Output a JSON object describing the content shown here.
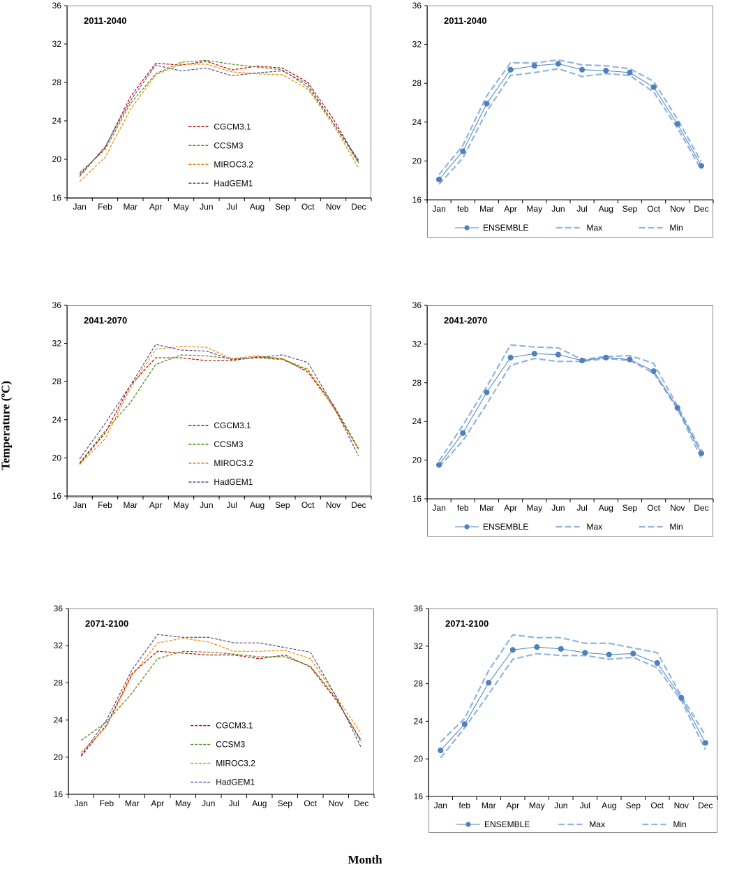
{
  "figure": {
    "ylabel_prefix": "Temperature (",
    "ylabel_sup": "o",
    "ylabel_suffix": "C)",
    "xlabel": "Month"
  },
  "colors": {
    "CGCM3.1": "#c00000",
    "CCSM3": "#4f8a10",
    "MIROC3.2": "#f08a00",
    "HadGEM1": "#5a4a8c",
    "ensemble": "#4f81bd",
    "bounds": "#8fb4e3",
    "frame": "#888888",
    "grid": "#000000"
  },
  "chart_data": [
    {
      "type": "line",
      "title": "2011-2040",
      "categories": [
        "Jan",
        "Feb",
        "Mar",
        "Apr",
        "May",
        "Jun",
        "Jul",
        "Aug",
        "Sep",
        "Oct",
        "Nov",
        "Dec"
      ],
      "yticks": [
        "16",
        "20",
        "24",
        "28",
        "32",
        "36"
      ],
      "ylim": [
        16,
        36
      ],
      "legend": "center",
      "series": [
        {
          "name": "CGCM3.1",
          "values": [
            18.4,
            21.2,
            26.5,
            30.0,
            29.8,
            30.2,
            29.3,
            29.7,
            29.5,
            28.0,
            24.2,
            19.7
          ]
        },
        {
          "name": "CCSM3",
          "values": [
            18.6,
            21.0,
            25.8,
            28.9,
            30.1,
            30.3,
            29.9,
            29.6,
            29.3,
            27.5,
            23.8,
            19.6
          ]
        },
        {
          "name": "MIROC3.2",
          "values": [
            17.7,
            20.2,
            25.2,
            28.8,
            29.9,
            29.9,
            29.1,
            28.9,
            28.8,
            27.3,
            23.6,
            19.1
          ]
        },
        {
          "name": "HadGEM1",
          "values": [
            18.2,
            21.3,
            26.1,
            29.8,
            29.2,
            29.5,
            28.7,
            29.0,
            29.2,
            27.8,
            23.8,
            19.9
          ]
        }
      ]
    },
    {
      "type": "line",
      "title": "2011-2040",
      "categories": [
        "Jan",
        "feb",
        "Mar",
        "Apr",
        "May",
        "Jun",
        "Jul",
        "Aug",
        "Sep",
        "Oct",
        "Nov",
        "Dec"
      ],
      "yticks": [
        "16",
        "20",
        "24",
        "28",
        "32",
        "36"
      ],
      "ylim": [
        16,
        36
      ],
      "legend": "bottom",
      "series": [
        {
          "name": "ENSEMBLE",
          "values": [
            18.1,
            21.0,
            25.9,
            29.4,
            29.8,
            30.0,
            29.4,
            29.3,
            29.1,
            27.6,
            23.8,
            19.5
          ]
        },
        {
          "name": "Max",
          "values": [
            18.6,
            21.6,
            26.7,
            30.1,
            30.1,
            30.4,
            29.9,
            29.8,
            29.5,
            28.2,
            24.3,
            19.9
          ]
        },
        {
          "name": "Min",
          "values": [
            17.6,
            20.3,
            25.1,
            28.8,
            29.1,
            29.5,
            28.7,
            29.0,
            28.8,
            27.1,
            23.4,
            19.1
          ]
        }
      ]
    },
    {
      "type": "line",
      "title": "2041-2070",
      "categories": [
        "Jan",
        "Feb",
        "Mar",
        "Apr",
        "May",
        "Jun",
        "Jul",
        "Aug",
        "Sep",
        "Oct",
        "Nov",
        "Dec"
      ],
      "yticks": [
        "16",
        "20",
        "24",
        "28",
        "32",
        "36"
      ],
      "ylim": [
        16,
        36
      ],
      "legend": "center",
      "series": [
        {
          "name": "CGCM3.1",
          "values": [
            19.4,
            22.6,
            27.6,
            30.5,
            30.5,
            30.2,
            30.2,
            30.6,
            30.4,
            29.0,
            25.4,
            20.9
          ]
        },
        {
          "name": "CCSM3",
          "values": [
            19.5,
            22.8,
            25.8,
            29.8,
            30.8,
            30.7,
            30.4,
            30.5,
            30.3,
            29.2,
            25.6,
            21.0
          ]
        },
        {
          "name": "MIROC3.2",
          "values": [
            19.3,
            22.0,
            27.3,
            31.4,
            31.7,
            31.6,
            30.4,
            30.7,
            30.4,
            29.3,
            25.3,
            20.9
          ]
        },
        {
          "name": "HadGEM1",
          "values": [
            19.9,
            23.6,
            27.6,
            31.9,
            31.3,
            31.2,
            30.3,
            30.5,
            30.8,
            30.0,
            25.5,
            20.2
          ]
        }
      ]
    },
    {
      "type": "line",
      "title": "2041-2070",
      "categories": [
        "Jan",
        "feb",
        "Mar",
        "Apr",
        "May",
        "Jun",
        "Jul",
        "Aug",
        "Sep",
        "Oct",
        "Nov",
        "Dec"
      ],
      "yticks": [
        "16",
        "20",
        "24",
        "28",
        "32",
        "36"
      ],
      "ylim": [
        16,
        36
      ],
      "legend": "bottom",
      "series": [
        {
          "name": "ENSEMBLE",
          "values": [
            19.5,
            22.8,
            27.0,
            30.6,
            31.0,
            30.9,
            30.3,
            30.6,
            30.4,
            29.2,
            25.4,
            20.7
          ]
        },
        {
          "name": "Max",
          "values": [
            19.9,
            23.6,
            27.6,
            31.9,
            31.7,
            31.6,
            30.4,
            30.7,
            30.8,
            30.0,
            25.6,
            21.0
          ]
        },
        {
          "name": "Min",
          "values": [
            19.3,
            22.0,
            25.8,
            29.8,
            30.5,
            30.2,
            30.2,
            30.5,
            30.3,
            29.0,
            25.3,
            20.2
          ]
        }
      ]
    },
    {
      "type": "line",
      "title": "2071-2100",
      "categories": [
        "Jan",
        "Feb",
        "Mar",
        "Apr",
        "May",
        "Jun",
        "Jul",
        "Aug",
        "Sep",
        "Oct",
        "Nov",
        "Dec"
      ],
      "yticks": [
        "16",
        "20",
        "24",
        "28",
        "32",
        "36"
      ],
      "ylim": [
        16,
        36
      ],
      "legend": "center",
      "series": [
        {
          "name": "CGCM3.1",
          "values": [
            20.1,
            23.5,
            29.0,
            31.4,
            31.2,
            31.0,
            31.0,
            30.6,
            31.0,
            29.7,
            26.2,
            21.8
          ]
        },
        {
          "name": "CCSM3",
          "values": [
            21.8,
            23.8,
            26.9,
            30.6,
            31.4,
            31.3,
            31.1,
            30.8,
            30.8,
            29.8,
            26.4,
            21.6
          ]
        },
        {
          "name": "MIROC3.2",
          "values": [
            20.5,
            23.3,
            28.8,
            32.3,
            32.8,
            32.4,
            31.4,
            31.4,
            31.5,
            30.6,
            26.6,
            22.5
          ]
        },
        {
          "name": "HadGEM1",
          "values": [
            20.2,
            24.0,
            29.4,
            33.2,
            32.9,
            32.9,
            32.3,
            32.3,
            31.8,
            31.3,
            26.6,
            21.0
          ]
        }
      ]
    },
    {
      "type": "line",
      "title": "2071-2100",
      "categories": [
        "Jan",
        "feb",
        "Mar",
        "Apr",
        "May",
        "Jun",
        "Jul",
        "Aug",
        "Sep",
        "Oct",
        "Nov",
        "Dec"
      ],
      "yticks": [
        "16",
        "20",
        "24",
        "28",
        "32",
        "36"
      ],
      "ylim": [
        16,
        36
      ],
      "legend": "bottom",
      "series": [
        {
          "name": "ENSEMBLE",
          "values": [
            20.9,
            23.7,
            28.1,
            31.6,
            31.9,
            31.7,
            31.3,
            31.1,
            31.2,
            30.2,
            26.5,
            21.7
          ]
        },
        {
          "name": "Max",
          "values": [
            21.8,
            24.3,
            29.4,
            33.2,
            32.9,
            32.9,
            32.3,
            32.3,
            31.8,
            31.3,
            26.7,
            22.5
          ]
        },
        {
          "name": "Min",
          "values": [
            20.1,
            23.3,
            26.9,
            30.6,
            31.2,
            31.0,
            31.0,
            30.6,
            30.8,
            29.7,
            26.2,
            21.0
          ]
        }
      ]
    }
  ]
}
